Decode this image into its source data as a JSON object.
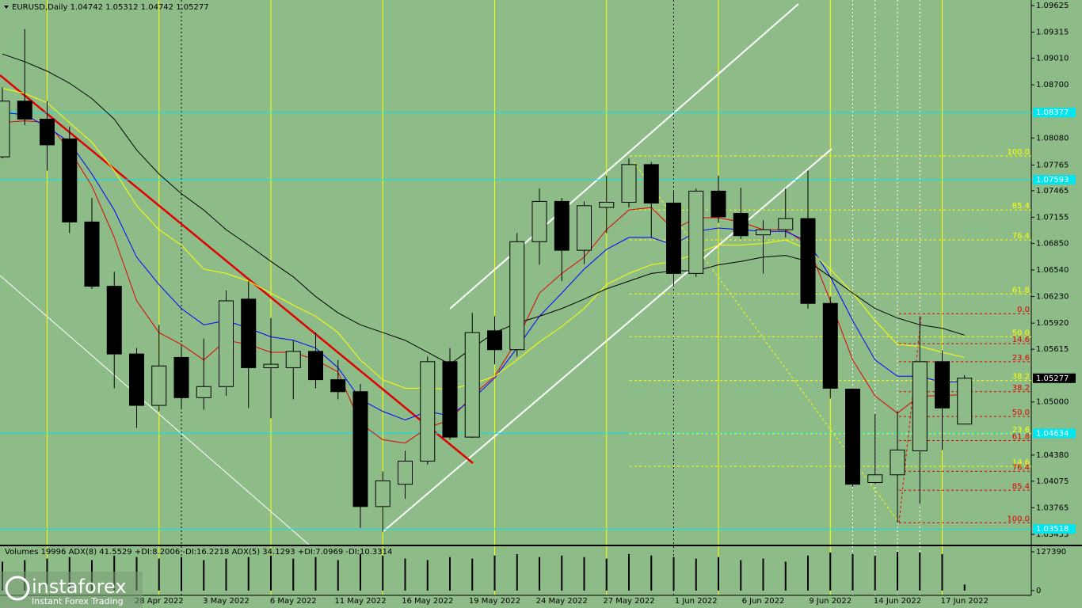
{
  "chart_data": {
    "type": "candlestick",
    "title": "EURUSD,Daily  1.04742 1.05312 1.04742 1.05277",
    "categories": [
      null,
      null,
      null,
      null,
      null,
      null,
      null,
      "28 Apr 2022",
      null,
      null,
      "3 May 2022",
      null,
      null,
      "6 May 2022",
      null,
      null,
      "11 May 2022",
      null,
      null,
      "16 May 2022",
      null,
      null,
      "19 May 2022",
      null,
      null,
      "24 May 2022",
      null,
      null,
      "27 May 2022",
      null,
      null,
      "1 Jun 2022",
      null,
      null,
      "6 Jun 2022",
      null,
      null,
      "9 Jun 2022",
      null,
      null,
      "14 Jun 2022",
      null,
      null,
      "17 Jun 2022"
    ],
    "open": [
      1.0786,
      1.0851,
      1.083,
      1.0807,
      1.071,
      1.0635,
      1.0556,
      1.0496,
      1.0552,
      1.0505,
      1.0518,
      1.062,
      1.054,
      1.054,
      1.0559,
      1.0526,
      1.0512,
      1.0378,
      1.0404,
      1.0431,
      1.0547,
      1.0459,
      1.0583,
      1.0561,
      1.0687,
      1.0734,
      1.0677,
      1.0727,
      1.0733,
      1.0777,
      1.0732,
      1.065,
      1.0746,
      1.072,
      1.0695,
      1.0701,
      1.0714,
      1.0615,
      1.0515,
      1.0406,
      1.0415,
      1.0443,
      1.0547,
      1.04742
    ],
    "high": [
      1.0867,
      1.0935,
      1.0851,
      1.0821,
      1.0738,
      1.0652,
      1.0563,
      1.059,
      1.0565,
      1.0574,
      1.063,
      1.0641,
      1.0598,
      1.0572,
      1.0581,
      1.0549,
      1.0521,
      1.0419,
      1.0443,
      1.0553,
      1.0563,
      1.0604,
      1.06,
      1.0697,
      1.0749,
      1.0738,
      1.0734,
      1.0764,
      1.0784,
      1.078,
      1.0745,
      1.0749,
      1.0764,
      1.075,
      1.0712,
      1.0749,
      1.077,
      1.0623,
      1.0516,
      1.0486,
      1.0489,
      1.06,
      1.056,
      1.05312
    ],
    "low": [
      1.0784,
      1.0823,
      1.077,
      1.0697,
      1.0632,
      1.0516,
      1.047,
      1.0489,
      1.0493,
      1.0491,
      1.0507,
      1.0493,
      1.0481,
      1.0503,
      1.0516,
      1.0503,
      1.0353,
      1.0348,
      1.0387,
      1.0427,
      1.0456,
      1.0458,
      1.0544,
      1.0553,
      1.066,
      1.0641,
      1.0661,
      1.0697,
      1.0727,
      1.0692,
      1.0635,
      1.0646,
      1.0709,
      1.069,
      1.065,
      1.0692,
      1.0609,
      1.0504,
      1.0401,
      1.0404,
      1.0359,
      1.0381,
      1.0444,
      1.04742
    ],
    "close": [
      1.0851,
      1.083,
      1.08,
      1.071,
      1.0635,
      1.0556,
      1.0496,
      1.0542,
      1.0505,
      1.0518,
      1.0618,
      1.054,
      1.0544,
      1.0559,
      1.0526,
      1.0512,
      1.0378,
      1.0408,
      1.0431,
      1.0547,
      1.0459,
      1.0581,
      1.0561,
      1.0687,
      1.0734,
      1.0677,
      1.0729,
      1.0733,
      1.0777,
      1.0732,
      1.065,
      1.0746,
      1.0716,
      1.0694,
      1.0701,
      1.0714,
      1.0615,
      1.0516,
      1.0404,
      1.0415,
      1.0444,
      1.0547,
      1.0493,
      1.05277
    ],
    "up_color": "#8ebc89",
    "down_color": "#000000",
    "overlays": [
      {
        "color": "#e00000",
        "values": [
          1.0826,
          1.0828,
          1.0826,
          1.0794,
          1.0752,
          1.0692,
          1.0618,
          1.0581,
          1.0567,
          1.0549,
          1.0572,
          1.0567,
          1.0558,
          1.0558,
          1.0549,
          1.0535,
          1.0475,
          1.0456,
          1.0452,
          1.047,
          1.0479,
          1.0507,
          1.053,
          1.0572,
          1.0627,
          1.065,
          1.0669,
          1.0701,
          1.0724,
          1.0727,
          1.0701,
          1.0715,
          1.0715,
          1.071,
          1.0701,
          1.0701,
          1.0683,
          1.0618,
          1.0549,
          1.0507,
          1.0487,
          1.0507,
          1.0507,
          1.0509
        ]
      },
      {
        "color": "#0000ff",
        "values": [
          1.0838,
          1.0835,
          1.0821,
          1.0803,
          1.0766,
          1.0724,
          1.0669,
          1.0637,
          1.0609,
          1.059,
          1.0595,
          1.0586,
          1.0576,
          1.0572,
          1.0563,
          1.054,
          1.0503,
          1.0489,
          1.0479,
          1.0489,
          1.0484,
          1.0503,
          1.0528,
          1.0563,
          1.06,
          1.0627,
          1.0655,
          1.0678,
          1.0692,
          1.0692,
          1.0683,
          1.0699,
          1.0703,
          1.0701,
          1.0699,
          1.0699,
          1.0687,
          1.0646,
          1.0595,
          1.0549,
          1.053,
          1.053,
          1.0523,
          1.0524
        ]
      },
      {
        "color": "#ffff00",
        "values": [
          1.0866,
          1.086,
          1.0849,
          1.0826,
          1.0803,
          1.077,
          1.0729,
          1.0701,
          1.0683,
          1.0655,
          1.065,
          1.0641,
          1.0627,
          1.0613,
          1.06,
          1.0581,
          1.0549,
          1.0526,
          1.0516,
          1.0516,
          1.0515,
          1.0521,
          1.053,
          1.0549,
          1.057,
          1.0588,
          1.0609,
          1.0637,
          1.065,
          1.066,
          1.0664,
          1.0673,
          1.0683,
          1.0683,
          1.0685,
          1.0689,
          1.0678,
          1.0655,
          1.0627,
          1.0595,
          1.0567,
          1.0565,
          1.0558,
          1.0552
        ]
      },
      {
        "color": "#000000",
        "values": [
          1.0906,
          1.0897,
          1.0886,
          1.0872,
          1.0854,
          1.083,
          1.0794,
          1.0766,
          1.0743,
          1.0724,
          1.0701,
          1.0683,
          1.0664,
          1.0646,
          1.0623,
          1.0604,
          1.059,
          1.0581,
          1.0572,
          1.0558,
          1.0544,
          1.0563,
          1.0581,
          1.0592,
          1.06,
          1.0609,
          1.062,
          1.0632,
          1.0641,
          1.065,
          1.0653,
          1.0653,
          1.066,
          1.0664,
          1.0669,
          1.0671,
          1.0664,
          1.0646,
          1.0627,
          1.0609,
          1.0598,
          1.059,
          1.0586,
          1.0578
        ]
      }
    ],
    "fibo_levels": [
      {
        "label": "100.0",
        "value": 1.0787,
        "color": "#ffff00"
      },
      {
        "label": "85.4",
        "value": 1.0724,
        "color": "#ffff00"
      },
      {
        "label": "76.4",
        "value": 1.0689,
        "color": "#ffff00"
      },
      {
        "label": "61.8",
        "value": 1.0626,
        "color": "#ffff00"
      },
      {
        "label": "50.0",
        "value": 1.0576,
        "color": "#ffff00"
      },
      {
        "label": "38.2",
        "value": 1.0525,
        "color": "#ffff00"
      },
      {
        "label": "23.6",
        "value": 1.0463,
        "color": "#ffff00"
      },
      {
        "label": "14.6",
        "value": 1.0425,
        "color": "#ffff00"
      },
      {
        "label": "0.0",
        "value": 1.0603,
        "color": "#e00000"
      },
      {
        "label": "14.6",
        "value": 1.0568,
        "color": "#e00000"
      },
      {
        "label": "23.6",
        "value": 1.0547,
        "color": "#e00000"
      },
      {
        "label": "38.2",
        "value": 1.0512,
        "color": "#e00000"
      },
      {
        "label": "50.0",
        "value": 1.0483,
        "color": "#e00000"
      },
      {
        "label": "61.8",
        "value": 1.0455,
        "color": "#e00000"
      },
      {
        "label": "76.4",
        "value": 1.0419,
        "color": "#e00000"
      },
      {
        "label": "85.4",
        "value": 1.0397,
        "color": "#e00000"
      },
      {
        "label": "100.0",
        "value": 1.0359,
        "color": "#e00000"
      }
    ],
    "price_levels": [
      1.08377,
      1.07593,
      1.04634,
      1.03518
    ],
    "level_color": "#00e5ee",
    "ylim": [
      1.03335,
      1.0969
    ],
    "yticks": [
      {
        "value": 1.09625,
        "label": "1.09625"
      },
      {
        "value": 1.09315,
        "label": "1.09315"
      },
      {
        "value": 1.0901,
        "label": "1.09010"
      },
      {
        "value": 1.087,
        "label": "1.08700"
      },
      {
        "value": 1.0808,
        "label": "1.08080"
      },
      {
        "value": 1.07765,
        "label": "1.07765"
      },
      {
        "value": 1.07465,
        "label": "1.07465"
      },
      {
        "value": 1.07155,
        "label": "1.07155"
      },
      {
        "value": 1.0685,
        "label": "1.06850"
      },
      {
        "value": 1.0654,
        "label": "1.06540"
      },
      {
        "value": 1.0623,
        "label": "1.06230"
      },
      {
        "value": 1.0592,
        "label": "1.05920"
      },
      {
        "value": 1.05615,
        "label": "1.05615"
      },
      {
        "value": 1.05,
        "label": "1.05000"
      },
      {
        "value": 1.0438,
        "label": "1.04380"
      },
      {
        "value": 1.04075,
        "label": "1.04075"
      },
      {
        "value": 1.03765,
        "label": "1.03765"
      },
      {
        "value": 1.03455,
        "label": "1.03455"
      }
    ],
    "volume": {
      "title": "Volumes 19996  ADX(8) 41.5529 +DI:8.2006 -DI:16.2218  ADX(5) 34.1293 +DI:7.0969 -DI:10.3314",
      "values": [
        95000,
        100000,
        105000,
        110000,
        100000,
        115000,
        110000,
        105000,
        110000,
        100000,
        105000,
        110000,
        115000,
        105000,
        110000,
        100000,
        120000,
        115000,
        105000,
        100000,
        110000,
        105000,
        115000,
        120000,
        110000,
        115000,
        110000,
        105000,
        120000,
        115000,
        110000,
        105000,
        110000,
        100000,
        105000,
        95000,
        115000,
        125000,
        120000,
        115000,
        127000,
        125000,
        120000,
        19996
      ],
      "color": "#000000",
      "ylim": [
        -15600,
        145600
      ],
      "yticks": [
        0,
        127390
      ]
    }
  },
  "watermark": {
    "brand": "instaforex",
    "tagline": "Instant Forex Trading"
  }
}
